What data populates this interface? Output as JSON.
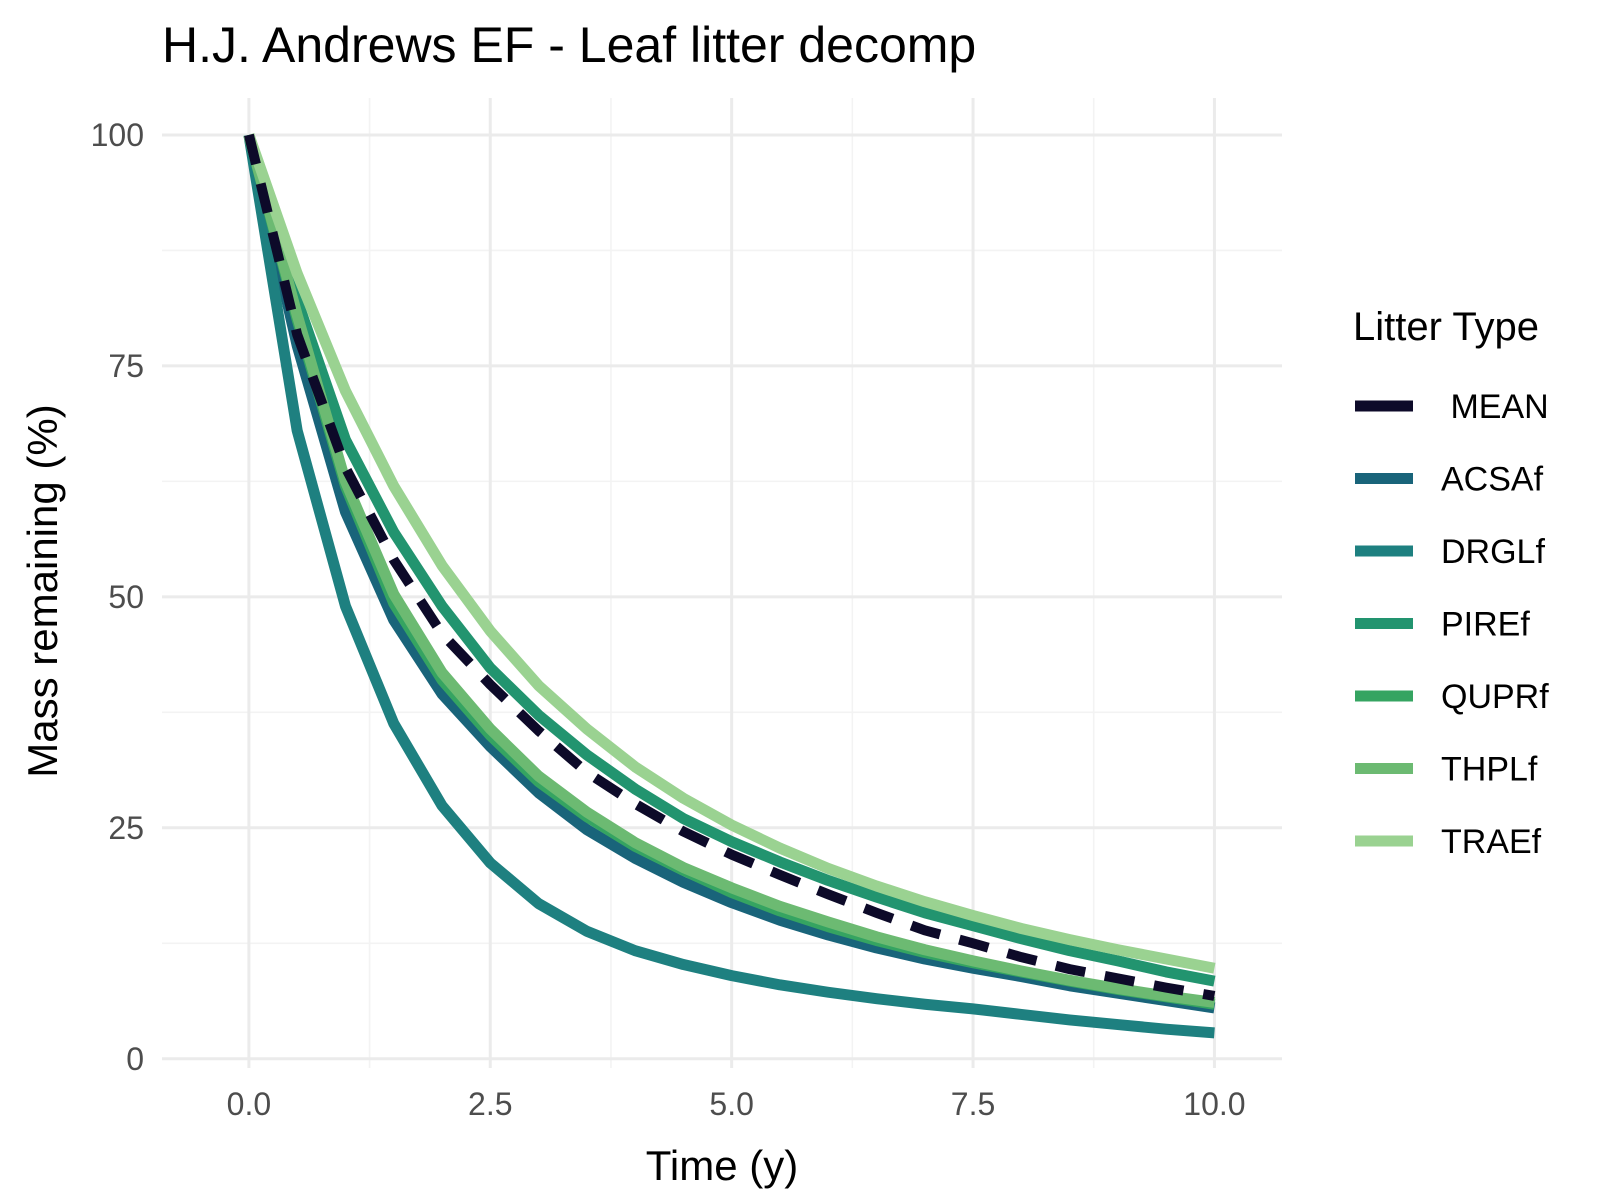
{
  "chart_data": {
    "type": "line",
    "title": "H.J. Andrews EF  - Leaf litter decomp",
    "xlabel": "Time (y)",
    "ylabel": "Mass remaining (%)",
    "xlim": [
      -0.9,
      10.7
    ],
    "ylim": [
      -1,
      104
    ],
    "x_ticks": [
      0.0,
      2.5,
      5.0,
      7.5,
      10.0
    ],
    "x_tick_labels": [
      "0.0",
      "2.5",
      "5.0",
      "7.5",
      "10.0"
    ],
    "y_ticks": [
      0,
      25,
      50,
      75,
      100
    ],
    "y_tick_labels": [
      "0",
      "25",
      "50",
      "75",
      "100"
    ],
    "grid": true,
    "legend": {
      "title": "Litter Type",
      "position": "right"
    },
    "x": [
      0,
      0.5,
      1,
      1.5,
      2,
      2.5,
      3,
      3.5,
      4,
      4.5,
      5,
      5.5,
      6,
      6.5,
      7,
      7.5,
      8,
      8.5,
      9,
      9.5,
      10
    ],
    "series": [
      {
        "name": " MEAN",
        "color": "#0d0a29",
        "dashed": true,
        "values": [
          100,
          78.4,
          64.0,
          54.0,
          46.0,
          40.5,
          35.5,
          31.0,
          27.6,
          24.6,
          22.1,
          19.9,
          17.8,
          15.8,
          13.9,
          12.5,
          11.0,
          9.7,
          8.7,
          7.7,
          6.8
        ]
      },
      {
        "name": "ACSAf",
        "color": "#19647a",
        "dashed": false,
        "values": [
          100,
          77.2,
          59.2,
          47.5,
          39.5,
          33.8,
          28.8,
          24.8,
          21.7,
          19.1,
          16.9,
          15.0,
          13.4,
          12.0,
          10.8,
          9.8,
          8.9,
          7.9,
          7.1,
          6.3,
          5.5
        ]
      },
      {
        "name": "DRGLf",
        "color": "#1e8080",
        "dashed": false,
        "values": [
          100,
          68.0,
          49.0,
          36.3,
          27.4,
          21.2,
          16.8,
          13.8,
          11.7,
          10.2,
          9.0,
          8.0,
          7.2,
          6.5,
          5.9,
          5.4,
          4.8,
          4.2,
          3.7,
          3.2,
          2.8
        ]
      },
      {
        "name": "PIREf",
        "color": "#22946f",
        "dashed": false,
        "values": [
          100,
          82.1,
          67.0,
          57.0,
          49.0,
          42.3,
          37.2,
          32.9,
          29.2,
          26.0,
          23.5,
          21.3,
          19.3,
          17.5,
          15.8,
          14.4,
          13.0,
          11.7,
          10.6,
          9.4,
          8.4
        ]
      },
      {
        "name": "QUPRf",
        "color": "#35a461",
        "dashed": false,
        "values": [
          100,
          80.0,
          62.0,
          49.3,
          41.0,
          35.0,
          30.0,
          26.2,
          23.0,
          20.4,
          18.0,
          16.0,
          14.3,
          12.8,
          11.5,
          10.4,
          9.4,
          8.4,
          7.5,
          6.7,
          5.9
        ]
      },
      {
        "name": "THPLf",
        "color": "#6cba72",
        "dashed": false,
        "values": [
          100,
          80.5,
          62.5,
          50.3,
          41.8,
          35.7,
          30.6,
          26.7,
          23.4,
          20.7,
          18.5,
          16.5,
          14.8,
          13.2,
          11.8,
          10.6,
          9.5,
          8.5,
          7.6,
          6.8,
          6.1
        ]
      },
      {
        "name": "TRAEf",
        "color": "#9ad291",
        "dashed": false,
        "values": [
          100,
          85.0,
          72.3,
          62.0,
          53.4,
          46.3,
          40.4,
          35.7,
          31.6,
          28.2,
          25.3,
          22.8,
          20.6,
          18.7,
          17.0,
          15.5,
          14.1,
          12.9,
          11.8,
          10.8,
          9.8
        ]
      }
    ]
  }
}
